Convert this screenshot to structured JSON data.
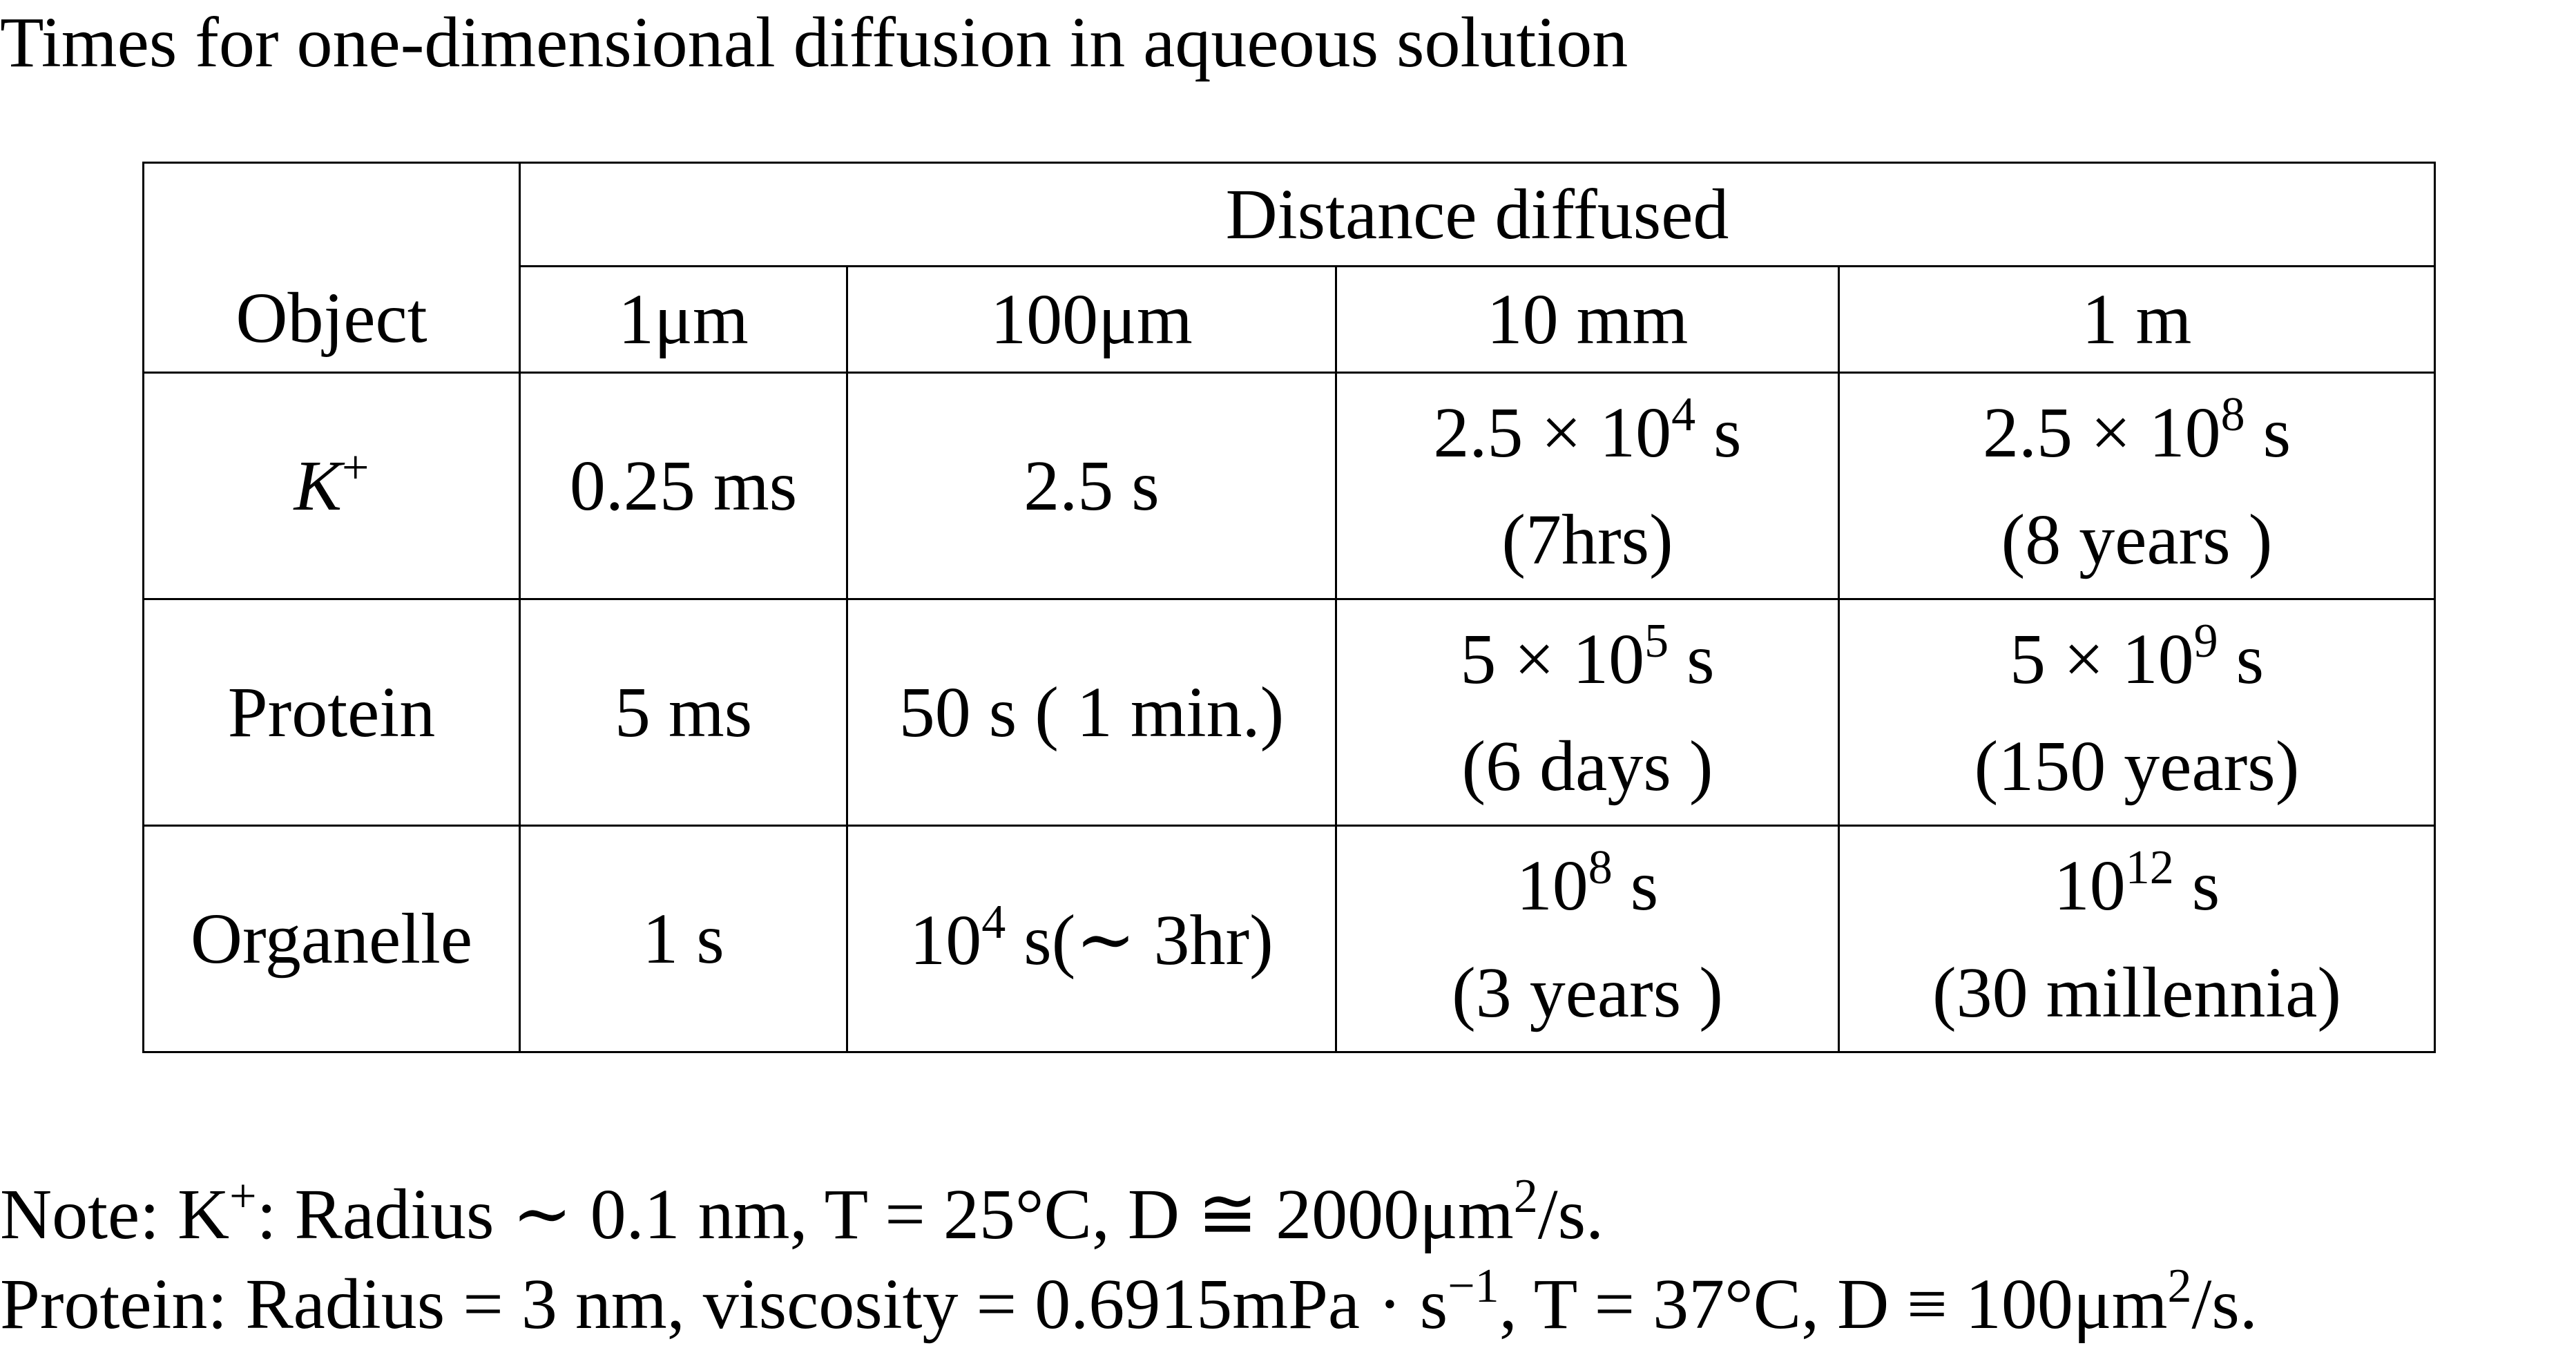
{
  "title": "Times for one-dimensional diffusion in aqueous solution",
  "table": {
    "object_header": "Object",
    "group_header": "Distance diffused",
    "distances": [
      "1μm",
      "100μm",
      "10 mm",
      "1 m"
    ],
    "rows": [
      {
        "object_base": "K",
        "object_sup": "+",
        "cells": [
          {
            "line1": "0.25 ms"
          },
          {
            "line1": "2.5 s"
          },
          {
            "mantissa": "2.5 × 10",
            "exponent": "4",
            "unit": " s",
            "line2": "(7hrs)"
          },
          {
            "mantissa": "2.5 × 10",
            "exponent": "8",
            "unit": " s",
            "line2": "(8 years )"
          }
        ]
      },
      {
        "object": "Protein",
        "cells": [
          {
            "line1": "5 ms"
          },
          {
            "line1": "50 s ( 1 min.)"
          },
          {
            "mantissa": "5 × 10",
            "exponent": "5",
            "unit": " s",
            "line2": "(6 days )"
          },
          {
            "mantissa": "5 × 10",
            "exponent": "9",
            "unit": " s",
            "line2": "(150 years)"
          }
        ]
      },
      {
        "object": "Organelle",
        "cells": [
          {
            "line1": "1 s"
          },
          {
            "mantissa": "10",
            "exponent": "4",
            "unit": " s(∼ 3hr)"
          },
          {
            "mantissa": "10",
            "exponent": "8",
            "unit": " s",
            "line2": "(3 years )"
          },
          {
            "mantissa": "10",
            "exponent": "12",
            "unit": " s",
            "line2": "(30 millennia)"
          }
        ]
      }
    ]
  },
  "notes": {
    "note1_prefix": "Note: K",
    "note1_sup": "+",
    "note1_text": ": Radius ∼ 0.1 nm, T = 25°C, D ≅ 2000μm",
    "note1_sup2": "2",
    "note1_end": "/s.",
    "note2_text": "Protein: Radius = 3 nm, viscosity = 0.6915mPa · s",
    "note2_sup": "−1",
    "note2_mid": ", T = 37°C, D ≡ 100μm",
    "note2_sup2": "2",
    "note2_end": "/s."
  }
}
